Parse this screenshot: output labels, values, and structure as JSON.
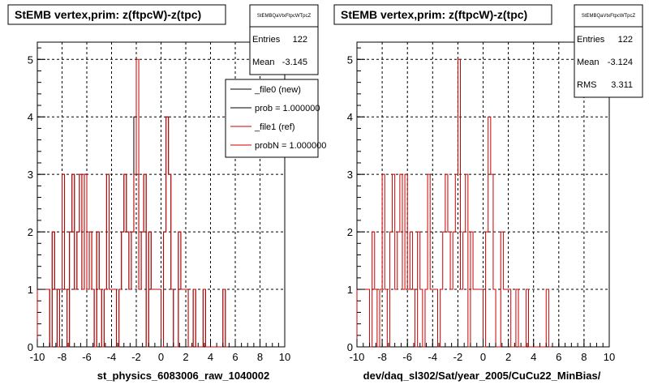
{
  "chart_data": [
    {
      "type": "histogram",
      "title": "StEMB  vertex,prim: z(ftpcW)-z(tpc)",
      "xlabel": "st_physics_6083006_raw_1040002",
      "xlim": [
        -10,
        10
      ],
      "ylim": [
        0,
        5.3
      ],
      "x_ticks": [
        "-10",
        "-8",
        "-6",
        "-4",
        "-2",
        "0",
        "2",
        "4",
        "6",
        "8",
        "10"
      ],
      "y_ticks": [
        "0",
        "1",
        "2",
        "3",
        "4",
        "5"
      ],
      "grid": true,
      "stats": {
        "header": "StEMBQaVtxFtpcWTpcZ",
        "rows": [
          {
            "label": "Entries",
            "value": "122"
          },
          {
            "label": "Mean",
            "value": "-3.145"
          }
        ]
      },
      "legend": {
        "placement": "top-right",
        "entries": [
          {
            "label": "_file0 (new)",
            "color": "#000000"
          },
          {
            "label": "prob = 1.000000",
            "color": "#000000"
          },
          {
            "label": "_file1 (ref)",
            "color": "#cc0000"
          },
          {
            "label": "probN = 1.000000",
            "color": "#cc0000"
          }
        ]
      },
      "series": [
        {
          "name": "_file0 (new)",
          "color": "#000000",
          "bins": [
            [
              -10.0,
              1
            ],
            [
              -9.8,
              1
            ],
            [
              -9.6,
              1
            ],
            [
              -9.4,
              1
            ],
            [
              -9.2,
              1
            ],
            [
              -9.0,
              0
            ],
            [
              -8.8,
              2
            ],
            [
              -8.6,
              1
            ],
            [
              -8.4,
              0
            ],
            [
              -8.2,
              1
            ],
            [
              -8.0,
              3
            ],
            [
              -7.8,
              1
            ],
            [
              -7.6,
              0
            ],
            [
              -7.4,
              2
            ],
            [
              -7.2,
              3
            ],
            [
              -7.0,
              1
            ],
            [
              -6.8,
              2
            ],
            [
              -6.6,
              3
            ],
            [
              -6.4,
              1
            ],
            [
              -6.2,
              3
            ],
            [
              -6.0,
              1
            ],
            [
              -5.8,
              2
            ],
            [
              -5.6,
              1
            ],
            [
              -5.4,
              0
            ],
            [
              -5.2,
              2
            ],
            [
              -5.0,
              1
            ],
            [
              -4.8,
              0
            ],
            [
              -4.6,
              1
            ],
            [
              -4.4,
              3
            ],
            [
              -4.2,
              1
            ],
            [
              -4.0,
              1
            ],
            [
              -3.8,
              1
            ],
            [
              -3.6,
              0
            ],
            [
              -3.4,
              1
            ],
            [
              -3.2,
              2
            ],
            [
              -3.0,
              3
            ],
            [
              -2.8,
              2
            ],
            [
              -2.6,
              1
            ],
            [
              -2.4,
              2
            ],
            [
              -2.2,
              4
            ],
            [
              -2.0,
              3
            ],
            [
              -1.8,
              1
            ],
            [
              -1.6,
              2
            ],
            [
              -1.4,
              3
            ],
            [
              -1.2,
              0
            ],
            [
              -1.0,
              2
            ],
            [
              -0.8,
              1
            ],
            [
              -0.6,
              1
            ],
            [
              -0.4,
              1
            ],
            [
              -0.2,
              1
            ],
            [
              0.0,
              0
            ],
            [
              0.2,
              2
            ],
            [
              0.4,
              4
            ],
            [
              0.6,
              3
            ],
            [
              0.8,
              1
            ],
            [
              1.0,
              0
            ],
            [
              1.2,
              0
            ],
            [
              1.4,
              2
            ],
            [
              1.6,
              1
            ],
            [
              1.8,
              1
            ],
            [
              2.0,
              1
            ],
            [
              2.2,
              0
            ],
            [
              2.4,
              0
            ],
            [
              2.6,
              1
            ],
            [
              2.8,
              0
            ],
            [
              3.0,
              0
            ],
            [
              3.2,
              0
            ],
            [
              3.4,
              1
            ],
            [
              3.6,
              0
            ],
            [
              3.8,
              0
            ],
            [
              4.0,
              0
            ],
            [
              4.2,
              0
            ],
            [
              4.4,
              0
            ],
            [
              4.6,
              0
            ],
            [
              4.8,
              0
            ],
            [
              5.0,
              1
            ],
            [
              5.2,
              0
            ]
          ]
        },
        {
          "name": "_file1 (ref)",
          "color": "#cc0000",
          "bins": [
            [
              -10.0,
              1
            ],
            [
              -9.8,
              1
            ],
            [
              -9.6,
              1
            ],
            [
              -9.4,
              1
            ],
            [
              -9.2,
              1
            ],
            [
              -9.0,
              0
            ],
            [
              -8.8,
              2
            ],
            [
              -8.6,
              1
            ],
            [
              -8.4,
              0
            ],
            [
              -8.2,
              1
            ],
            [
              -8.0,
              3
            ],
            [
              -7.8,
              1
            ],
            [
              -7.6,
              0
            ],
            [
              -7.4,
              2
            ],
            [
              -7.2,
              3
            ],
            [
              -7.0,
              1
            ],
            [
              -6.8,
              2
            ],
            [
              -6.6,
              3
            ],
            [
              -6.4,
              1
            ],
            [
              -6.2,
              3
            ],
            [
              -6.0,
              1
            ],
            [
              -5.8,
              2
            ],
            [
              -5.6,
              1
            ],
            [
              -5.4,
              0
            ],
            [
              -5.2,
              2
            ],
            [
              -5.0,
              1
            ],
            [
              -4.8,
              0
            ],
            [
              -4.6,
              1
            ],
            [
              -4.4,
              3
            ],
            [
              -4.2,
              1
            ],
            [
              -4.0,
              1
            ],
            [
              -3.8,
              1
            ],
            [
              -3.6,
              0
            ],
            [
              -3.4,
              1
            ],
            [
              -3.2,
              2
            ],
            [
              -3.0,
              3
            ],
            [
              -2.8,
              2
            ],
            [
              -2.6,
              1
            ],
            [
              -2.4,
              2
            ],
            [
              -2.2,
              3
            ],
            [
              -2.0,
              5
            ],
            [
              -1.8,
              1
            ],
            [
              -1.6,
              2
            ],
            [
              -1.4,
              3
            ],
            [
              -1.2,
              0
            ],
            [
              -1.0,
              2
            ],
            [
              -0.8,
              1
            ],
            [
              -0.6,
              1
            ],
            [
              -0.4,
              1
            ],
            [
              -0.2,
              1
            ],
            [
              0.0,
              0
            ],
            [
              0.2,
              2
            ],
            [
              0.4,
              4
            ],
            [
              0.6,
              3
            ],
            [
              0.8,
              1
            ],
            [
              1.0,
              0
            ],
            [
              1.2,
              0
            ],
            [
              1.4,
              2
            ],
            [
              1.6,
              1
            ],
            [
              1.8,
              1
            ],
            [
              2.0,
              1
            ],
            [
              2.2,
              0
            ],
            [
              2.4,
              0
            ],
            [
              2.6,
              1
            ],
            [
              2.8,
              0
            ],
            [
              3.0,
              0
            ],
            [
              3.2,
              0
            ],
            [
              3.4,
              1
            ],
            [
              3.6,
              0
            ],
            [
              3.8,
              0
            ],
            [
              4.0,
              0
            ],
            [
              4.2,
              0
            ],
            [
              4.4,
              0
            ],
            [
              4.6,
              0
            ],
            [
              4.8,
              0
            ],
            [
              5.0,
              1
            ],
            [
              5.2,
              0
            ]
          ]
        }
      ]
    },
    {
      "type": "histogram",
      "title": "StEMB  vertex,prim: z(ftpcW)-z(tpc)",
      "xlabel": "dev/daq_sl302/Sat/year_2005/CuCu22_MinBias/",
      "xlim": [
        -10,
        10
      ],
      "ylim": [
        0,
        5.3
      ],
      "x_ticks": [
        "-10",
        "-8",
        "-6",
        "-4",
        "-2",
        "0",
        "2",
        "4",
        "6",
        "8",
        "10"
      ],
      "y_ticks": [
        "0",
        "1",
        "2",
        "3",
        "4",
        "5"
      ],
      "grid": true,
      "stats": {
        "header": "StEMBQaVtxFtpcWTpcZ",
        "rows": [
          {
            "label": "Entries",
            "value": "122"
          },
          {
            "label": "Mean",
            "value": "-3.124"
          },
          {
            "label": "RMS",
            "value": "3.311"
          }
        ]
      },
      "series": [
        {
          "name": "",
          "color": "#cc0000",
          "bins": [
            [
              -10.0,
              1
            ],
            [
              -9.8,
              1
            ],
            [
              -9.6,
              1
            ],
            [
              -9.4,
              1
            ],
            [
              -9.2,
              1
            ],
            [
              -9.0,
              0
            ],
            [
              -8.8,
              2
            ],
            [
              -8.6,
              1
            ],
            [
              -8.4,
              0
            ],
            [
              -8.2,
              1
            ],
            [
              -8.0,
              3
            ],
            [
              -7.8,
              1
            ],
            [
              -7.6,
              0
            ],
            [
              -7.4,
              2
            ],
            [
              -7.2,
              3
            ],
            [
              -7.0,
              1
            ],
            [
              -6.8,
              2
            ],
            [
              -6.6,
              3
            ],
            [
              -6.4,
              1
            ],
            [
              -6.2,
              3
            ],
            [
              -6.0,
              1
            ],
            [
              -5.8,
              2
            ],
            [
              -5.6,
              1
            ],
            [
              -5.4,
              0
            ],
            [
              -5.2,
              2
            ],
            [
              -5.0,
              1
            ],
            [
              -4.8,
              0
            ],
            [
              -4.6,
              1
            ],
            [
              -4.4,
              3
            ],
            [
              -4.2,
              1
            ],
            [
              -4.0,
              1
            ],
            [
              -3.8,
              1
            ],
            [
              -3.6,
              0
            ],
            [
              -3.4,
              1
            ],
            [
              -3.2,
              2
            ],
            [
              -3.0,
              3
            ],
            [
              -2.8,
              2
            ],
            [
              -2.6,
              1
            ],
            [
              -2.4,
              2
            ],
            [
              -2.2,
              3
            ],
            [
              -2.0,
              5
            ],
            [
              -1.8,
              1
            ],
            [
              -1.6,
              2
            ],
            [
              -1.4,
              3
            ],
            [
              -1.2,
              0
            ],
            [
              -1.0,
              2
            ],
            [
              -0.8,
              1
            ],
            [
              -0.6,
              1
            ],
            [
              -0.4,
              1
            ],
            [
              -0.2,
              1
            ],
            [
              0.0,
              0
            ],
            [
              0.2,
              2
            ],
            [
              0.4,
              4
            ],
            [
              0.6,
              3
            ],
            [
              0.8,
              1
            ],
            [
              1.0,
              0
            ],
            [
              1.2,
              0
            ],
            [
              1.4,
              2
            ],
            [
              1.6,
              1
            ],
            [
              1.8,
              1
            ],
            [
              2.0,
              1
            ],
            [
              2.2,
              0
            ],
            [
              2.4,
              0
            ],
            [
              2.6,
              1
            ],
            [
              2.8,
              0
            ],
            [
              3.0,
              0
            ],
            [
              3.2,
              0
            ],
            [
              3.4,
              1
            ],
            [
              3.6,
              0
            ],
            [
              3.8,
              0
            ],
            [
              4.0,
              0
            ],
            [
              4.2,
              0
            ],
            [
              4.4,
              0
            ],
            [
              4.6,
              0
            ],
            [
              4.8,
              0
            ],
            [
              5.0,
              1
            ],
            [
              5.2,
              0
            ]
          ]
        }
      ]
    }
  ]
}
